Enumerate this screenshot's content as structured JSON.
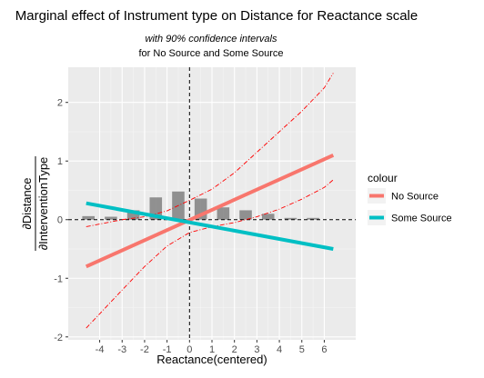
{
  "chart_data": {
    "type": "line",
    "title": "Marginal effect of Instrument type on Distance for Reactance scale",
    "subtitle_line1": "with 90% confidence intervals",
    "subtitle_line2": "for No Source and Some Source",
    "xlabel": "Reactance(centered)",
    "ylabel_numerator": "∂Distance",
    "ylabel_denominator": "∂InterventionType",
    "xlim": [
      -5.4,
      7.4
    ],
    "ylim": [
      -2.05,
      2.6
    ],
    "x_ticks": [
      -4,
      -3,
      -2,
      -1,
      0,
      1,
      2,
      3,
      4,
      5,
      6
    ],
    "y_ticks": [
      -2,
      -1,
      0,
      1,
      2
    ],
    "grid": true,
    "background": "#ebebeb",
    "legend": {
      "title": "colour",
      "placement": "right",
      "entries": [
        {
          "label": "No Source",
          "color": "#f8766d"
        },
        {
          "label": "Some Source",
          "color": "#00bfc4"
        }
      ]
    },
    "reference_lines": {
      "x": 0,
      "y": 0
    },
    "series": [
      {
        "name": "No Source",
        "color": "#f8766d",
        "x": [
          -4.6,
          6.4
        ],
        "y": [
          -0.8,
          1.1
        ]
      },
      {
        "name": "Some Source",
        "color": "#00bfc4",
        "x": [
          -4.6,
          6.4
        ],
        "y": [
          0.28,
          -0.5
        ]
      }
    ],
    "confidence_band": {
      "color": "#ff0000",
      "x": [
        -4.6,
        -3,
        -2,
        -1,
        0,
        1,
        2,
        3,
        4,
        5,
        6,
        6.4
      ],
      "upper": [
        -0.12,
        0.0,
        0.05,
        0.15,
        0.33,
        0.52,
        0.8,
        1.15,
        1.5,
        1.85,
        2.25,
        2.5
      ],
      "lower": [
        -1.85,
        -1.2,
        -0.8,
        -0.45,
        -0.22,
        -0.12,
        -0.05,
        0.05,
        0.18,
        0.35,
        0.55,
        0.68
      ]
    },
    "histogram": {
      "color": "#808080",
      "x": [
        -4.5,
        -3.5,
        -2.5,
        -1.5,
        -0.5,
        0.5,
        1.5,
        2.5,
        3.5,
        4.5,
        5.5
      ],
      "height": [
        0.06,
        0.05,
        0.16,
        0.38,
        0.48,
        0.36,
        0.21,
        0.16,
        0.1,
        0.03,
        0.03
      ]
    }
  }
}
